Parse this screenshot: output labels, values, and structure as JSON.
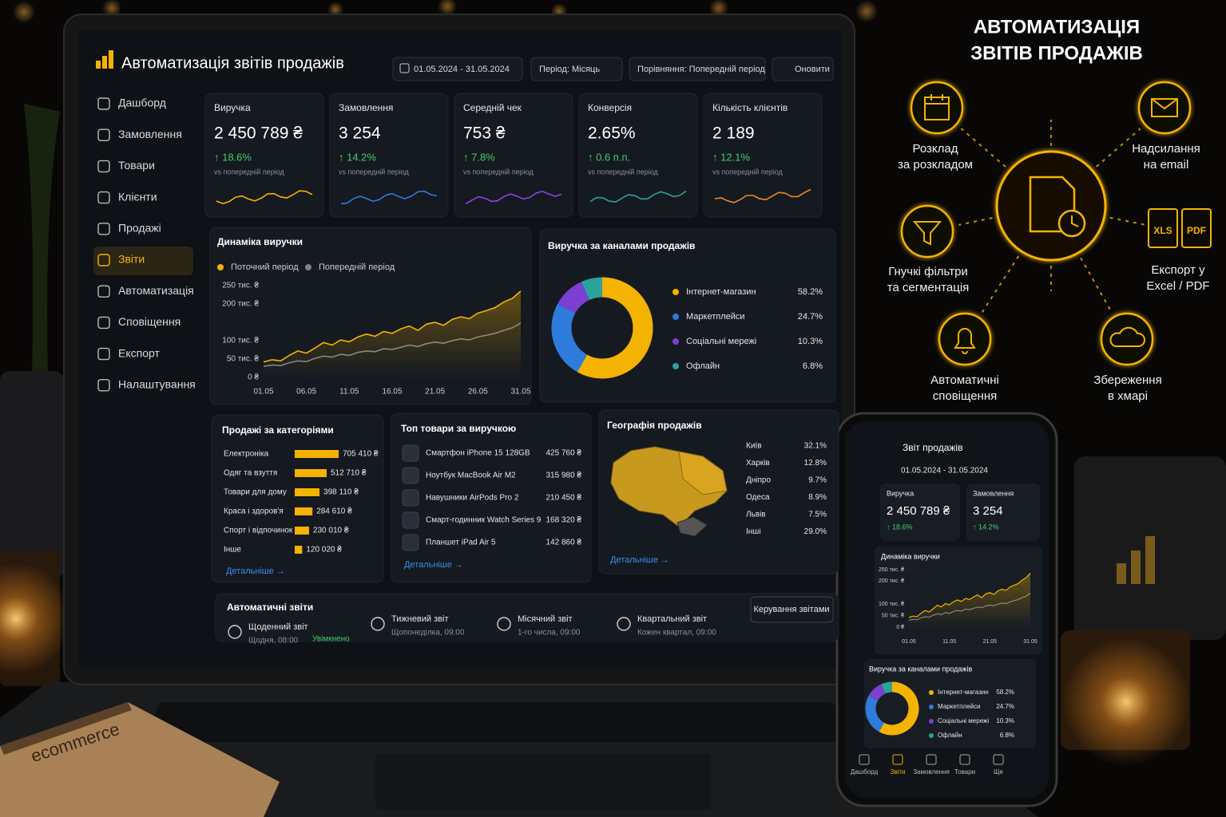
{
  "header": {
    "title": "Автоматизація звітів продажів",
    "date_range": "01.05.2024 - 31.05.2024",
    "period": "Період: Місяць",
    "comparison": "Порівняння: Попередній період",
    "refresh": "Оновити"
  },
  "sidebar": {
    "items": [
      "Дашборд",
      "Замовлення",
      "Товари",
      "Клієнти",
      "Продажі",
      "Звіти",
      "Автоматизація",
      "Сповіщення",
      "Експорт",
      "Налаштування"
    ],
    "active": 5
  },
  "kpis": [
    {
      "label": "Виручка",
      "value": "2 450 789 ₴",
      "delta": "↑ 18.6%",
      "note": "vs попередній період",
      "color": "#f5b301"
    },
    {
      "label": "Замовлення",
      "value": "3 254",
      "delta": "↑ 14.2%",
      "note": "vs попередній період",
      "color": "#2f7bdc"
    },
    {
      "label": "Середній чек",
      "value": "753 ₴",
      "delta": "↑ 7.8%",
      "note": "vs попередній період",
      "color": "#8b46e0"
    },
    {
      "label": "Конверсія",
      "value": "2.65%",
      "delta": "↑ 0.6 п.п.",
      "note": "vs попередній період",
      "color": "#2ba39a"
    },
    {
      "label": "Кількість клієнтів",
      "value": "2 189",
      "delta": "↑ 12.1%",
      "note": "vs попередній період",
      "color": "#f08a1c"
    }
  ],
  "revenue_chart": {
    "type": "line",
    "title": "Динаміка виручки",
    "categories": [
      "01.05",
      null,
      null,
      null,
      null,
      "06.05",
      null,
      null,
      null,
      null,
      "11.05",
      null,
      null,
      null,
      null,
      "16.05",
      null,
      null,
      null,
      null,
      "21.05",
      null,
      null,
      null,
      null,
      "26.05",
      null,
      null,
      null,
      null,
      "31.05"
    ],
    "series": [
      {
        "name": "Поточний період",
        "color": "#f5b301",
        "values": [
          42000,
          48000,
          45000,
          60000,
          72000,
          66000,
          80000,
          95000,
          88000,
          102000,
          97000,
          110000,
          118000,
          112000,
          125000,
          120000,
          132000,
          140000,
          128000,
          145000,
          150000,
          142000,
          158000,
          165000,
          160000,
          175000,
          182000,
          190000,
          205000,
          215000,
          235000
        ]
      },
      {
        "name": "Попередній період",
        "color": "#7d828b",
        "values": [
          30000,
          34000,
          32000,
          40000,
          45000,
          43000,
          52000,
          58000,
          55000,
          63000,
          60000,
          68000,
          72000,
          70000,
          78000,
          76000,
          82000,
          88000,
          84000,
          92000,
          96000,
          93000,
          100000,
          105000,
          102000,
          110000,
          115000,
          120000,
          128000,
          135000,
          148000
        ]
      }
    ],
    "ylim": [
      0,
      250000
    ],
    "yticks": [
      {
        "value": 250000,
        "label": "250 тис. ₴"
      },
      {
        "value": 200000,
        "label": "200 тис. ₴"
      },
      {
        "value": 100000,
        "label": "100 тис. ₴"
      },
      {
        "value": 50000,
        "label": "50 тис. ₴"
      },
      {
        "value": 0,
        "label": "0 ₴"
      }
    ],
    "grid": true
  },
  "channels_chart": {
    "type": "pie",
    "title": "Виручка за каналами продажів",
    "categories": [
      "Інтернет-магазин",
      "Маркетплейси",
      "Соціальні мережі",
      "Офлайн"
    ],
    "values": [
      58.2,
      24.7,
      10.3,
      6.8
    ],
    "value_labels": [
      "58.2%",
      "24.7%",
      "10.3%",
      "6.8%"
    ],
    "colors": [
      "#f5b301",
      "#2f7bdc",
      "#7b3fd1",
      "#2ba39a"
    ]
  },
  "category_sales": {
    "type": "bar",
    "title": "Продажі за категоріями",
    "categories": [
      "Електроніка",
      "Одяг та взуття",
      "Товари для дому",
      "Краса і здоров'я",
      "Спорт і відпочинок",
      "Інше"
    ],
    "values": [
      705410,
      512710,
      398110,
      284610,
      230010,
      120020
    ],
    "value_labels": [
      "705 410 ₴",
      "512 710 ₴",
      "398 110 ₴",
      "284 610 ₴",
      "230 010 ₴",
      "120 020 ₴"
    ],
    "color": "#f5b301",
    "link": "Детальніше →"
  },
  "top_products": {
    "title": "Топ товари за виручкою",
    "rows": [
      [
        "Смартфон iPhone 15 128GB",
        "425 760 ₴"
      ],
      [
        "Ноутбук MacBook Air M2",
        "315 980 ₴"
      ],
      [
        "Навушники AirPods Pro 2",
        "210 450 ₴"
      ],
      [
        "Смарт-годинник Watch Series 9",
        "168 320 ₴"
      ],
      [
        "Планшет iPad Air 5",
        "142 860 ₴"
      ]
    ],
    "link": "Детальніше →"
  },
  "geography": {
    "title": "Географія продажів",
    "rows": [
      [
        "Київ",
        "32.1%"
      ],
      [
        "Харків",
        "12.8%"
      ],
      [
        "Дніпро",
        "9.7%"
      ],
      [
        "Одеса",
        "8.9%"
      ],
      [
        "Львів",
        "7.5%"
      ],
      [
        "Інші",
        "29.0%"
      ]
    ],
    "link": "Детальніше →"
  },
  "auto_reports": {
    "title": "Автоматичні звіти",
    "items": [
      {
        "name": "Щоденний звіт",
        "schedule": "Щодня, 08:00",
        "status": "Увімкнено"
      },
      {
        "name": "Тижневий звіт",
        "schedule": "Щопонеділка, 09:00"
      },
      {
        "name": "Місячний звіт",
        "schedule": "1-го числа, 09:00"
      },
      {
        "name": "Квартальний звіт",
        "schedule": "Кожен квартал, 09:00"
      }
    ],
    "button": "Керування звітами"
  },
  "promo": {
    "title": [
      "АВТОМАТИЗАЦІЯ",
      "ЗВІТІВ ПРОДАЖІВ"
    ],
    "features": [
      {
        "lines": [
          "Розклад",
          "за розкладом"
        ]
      },
      {
        "lines": [
          "Надсилання",
          "на email"
        ]
      },
      {
        "lines": [
          "Гнучкі фільтри",
          "та сегментація"
        ]
      },
      {
        "lines": [
          "Експорт у",
          "Excel / PDF"
        ]
      },
      {
        "lines": [
          "Автоматичні",
          "сповіщення"
        ]
      },
      {
        "lines": [
          "Збереження",
          "в хмарі"
        ]
      }
    ],
    "export_badges": [
      "XLS",
      "PDF"
    ]
  },
  "phone": {
    "title": "Звіт продажів",
    "nav": [
      "Дашборд",
      "Звіти",
      "Замовлення",
      "Товари",
      "Ще"
    ]
  },
  "decor": {
    "notebook": "ecommerce"
  }
}
